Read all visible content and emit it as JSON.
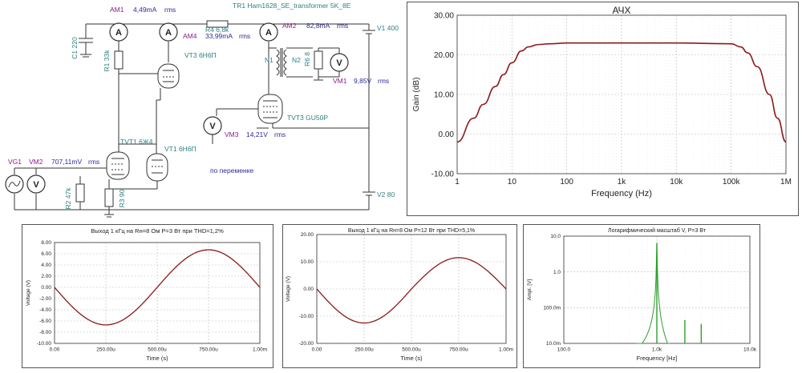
{
  "schematic": {
    "labels": {
      "c1": "C1 220",
      "am1": "AM1",
      "am1_val": "4,49mA",
      "am1_unit": "rms",
      "r4": "R4 6,8k",
      "am4": "AM4",
      "am4_val": "33,99mA",
      "am4_unit": "rms",
      "tr1": "TR1 Ham1628_SE_transformer 5K_8E",
      "am2": "AM2",
      "am2_val": "82,8mA",
      "am2_unit": "rms",
      "v1": "V1 400",
      "r1": "R1 33k",
      "vt3": "VT3 6Н6П",
      "n1": "N1",
      "n2": "N2",
      "r6": "R6 8",
      "vm1": "VM1",
      "vm1_val": "9,85V",
      "vm1_unit": "rms",
      "tvt3": "TVT3 GU50P",
      "vm3": "VM3",
      "vm3_val": "14,21V",
      "vm3_unit": "rms",
      "tvt1": "TVT1 6Ж4",
      "vt1": "VT1 6Н6П",
      "vg1": "VG1",
      "vm2": "VM2",
      "vm2_val": "707,11mV",
      "vm2_unit": "rms",
      "r2": "R2 47k",
      "r3": "R3 90",
      "note": "по переменке",
      "v2": "V2 80"
    }
  },
  "chart_data": [
    {
      "type": "line",
      "title": "АЧХ",
      "xlabel": "Frequency (Hz)",
      "ylabel": "Gain (dB)",
      "xscale": "log",
      "xlim": [
        1,
        1000000
      ],
      "ylim": [
        -10,
        30
      ],
      "xticks": [
        "1",
        "10",
        "100",
        "1k",
        "10k",
        "100k",
        "1M"
      ],
      "yticks": [
        "-10.00",
        "0.00",
        "10.00",
        "20.00",
        "30.00"
      ],
      "grid": true,
      "color": "#8b1a1a",
      "x": [
        1,
        2,
        3,
        5,
        7,
        10,
        15,
        20,
        30,
        50,
        100,
        1000,
        10000,
        100000,
        150000,
        200000,
        300000,
        500000,
        700000,
        1000000
      ],
      "y": [
        -2,
        4,
        7.5,
        12,
        15,
        18,
        21,
        22,
        22.6,
        22.8,
        23,
        23,
        23,
        22.8,
        22,
        20.5,
        17,
        10,
        4,
        -2
      ]
    },
    {
      "type": "line",
      "title": "Выход 1 кГц на Rн=8 Ом P=3 Вт при THD=1,2%",
      "xlabel": "Time (s)",
      "ylabel": "Voltage (V)",
      "xlim": [
        0,
        0.001
      ],
      "ylim": [
        -10,
        8
      ],
      "xticks": [
        "0.00",
        "250.00u",
        "500.00u",
        "750.00u",
        "1.00m"
      ],
      "yticks": [
        "-10.00",
        "-8.00",
        "-6.00",
        "-4.00",
        "-2.00",
        "0.00",
        "2.00",
        "4.00",
        "6.00",
        "8.00"
      ],
      "grid": true,
      "color": "#8b1a1a",
      "amplitude": 6.7,
      "shape": "-sin(2*pi*1000*t)"
    },
    {
      "type": "line",
      "title": "Выход 1 кГц на Rн=8 Ом P=12 Вт при THD=5,1%",
      "xlabel": "Time (s)",
      "ylabel": "Voltage (V)",
      "xlim": [
        0,
        0.001
      ],
      "ylim": [
        -20,
        20
      ],
      "xticks": [
        "0.00",
        "250.00u",
        "500.00u",
        "750.00u",
        "1.00m"
      ],
      "yticks": [
        "-20.00",
        "-10.00",
        "0.00",
        "10.00",
        "20.00"
      ],
      "grid": true,
      "color": "#8b1a1a",
      "amplitude_pos": 11.5,
      "amplitude_neg": 12.5,
      "shape": "-sin(2*pi*1000*t)"
    },
    {
      "type": "bar",
      "title": "Логарифмический масштаб V, P=3 Вт",
      "xlabel": "Frequency [Hz]",
      "ylabel": "Ampl. [V]",
      "xscale": "log",
      "yscale": "log",
      "xlim": [
        100,
        10000
      ],
      "ylim": [
        0.01,
        10
      ],
      "xticks": [
        "100.0",
        "1.0k",
        "10.0k"
      ],
      "yticks": [
        "10.0m",
        "100.0m",
        "1.0",
        "10.0"
      ],
      "grid": true,
      "color": "#2ca02c",
      "x": [
        1000,
        2000,
        3000
      ],
      "values": [
        6.5,
        0.045,
        0.035
      ]
    }
  ]
}
